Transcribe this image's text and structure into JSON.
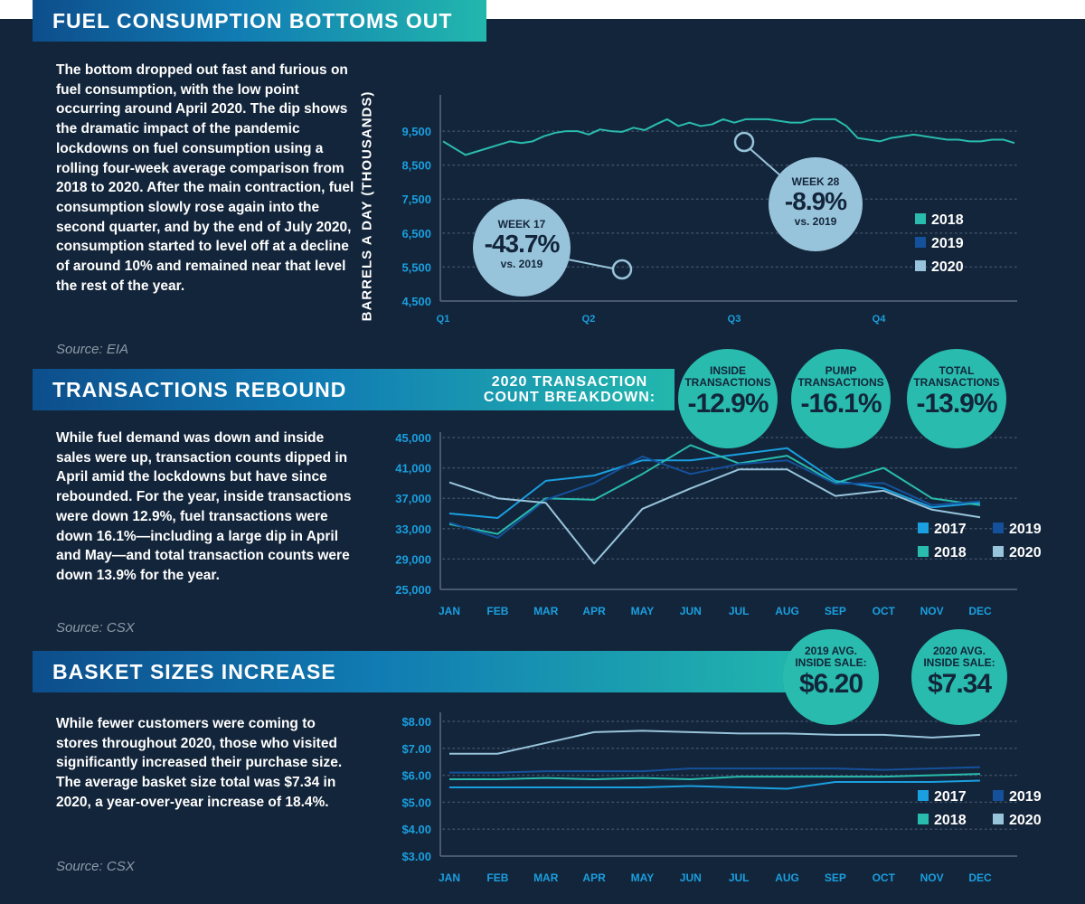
{
  "sections": [
    {
      "title": "FUEL CONSUMPTION BOTTOMS OUT",
      "body": "The bottom dropped out fast and furious on fuel consumption, with the low point occurring around April 2020. The dip shows the dramatic impact of the pandemic lockdowns on fuel consumption using a rolling four-week average comparison from 2018 to 2020. After the main contraction, fuel consumption slowly rose again into the second quarter, and by the end of July 2020, consumption started to level off at a decline of around 10% and remained near that level the rest of the year.",
      "source": "Source: EIA"
    },
    {
      "title": "TRANSACTIONS REBOUND",
      "body": "While fuel demand was down and inside sales were up, transaction counts dipped in April amid the lockdowns but have since rebounded. For the year, inside transactions were down 12.9%, fuel transactions were down 16.1%—including a large dip in April and May—and total transaction counts were down 13.9% for the year.",
      "source": "Source: CSX"
    },
    {
      "title": "BASKET SIZES INCREASE",
      "body": "While fewer customers were coming to stores throughout 2020, those who visited significantly increased their purchase size. The average basket size total was $7.34 in 2020, a year-over-year increase of 18.4%.",
      "source": "Source: CSX"
    }
  ],
  "callouts": {
    "week17": {
      "week": "WEEK 17",
      "value": "-43.7%",
      "vs": "vs. 2019"
    },
    "week28": {
      "week": "WEEK 28",
      "value": "-8.9%",
      "vs": "vs. 2019"
    }
  },
  "breakdown_label": "2020 TRANSACTION COUNT BREAKDOWN:",
  "breakdown": [
    {
      "label1": "INSIDE",
      "label2": "TRANSACTIONS",
      "value": "-12.9%"
    },
    {
      "label1": "PUMP",
      "label2": "TRANSACTIONS",
      "value": "-16.1%"
    },
    {
      "label1": "TOTAL",
      "label2": "TRANSACTIONS",
      "value": "-13.9%"
    }
  ],
  "avg_sales": [
    {
      "label1": "2019 AVG.",
      "label2": "INSIDE SALE:",
      "value": "$6.20"
    },
    {
      "label1": "2020 AVG.",
      "label2": "INSIDE SALE:",
      "value": "$7.34"
    }
  ],
  "colors": {
    "background": "#13253a",
    "series_2017": "#1a9fe0",
    "series_2018": "#29bcae",
    "series_2019": "#15519b",
    "series_2020": "#98c4db",
    "axis_text": "#1a9fe0"
  },
  "chart_data": [
    {
      "type": "line",
      "title": "",
      "ylabel": "BARRELS A DAY (THOUSANDS)",
      "xlabel": "",
      "x_ticks": [
        "Q1",
        "Q2",
        "Q3",
        "Q4"
      ],
      "y_ticks": [
        "4,500",
        "5,500",
        "6,500",
        "7,500",
        "8,500",
        "9,500"
      ],
      "ylim": [
        4500,
        10300
      ],
      "grid": "horizontal dotted",
      "legend": "right",
      "series": [
        {
          "name": "2018",
          "color_key": "series_2018",
          "x": [
            1,
            2,
            3,
            4,
            5,
            6,
            7,
            8,
            9,
            10,
            11,
            12,
            13,
            14,
            15,
            16,
            17,
            18,
            19,
            20,
            21,
            22,
            23,
            24,
            25,
            26,
            27,
            28,
            29,
            30,
            31,
            32,
            33,
            34,
            35,
            36,
            37,
            38,
            39,
            40,
            41,
            42,
            43,
            44,
            45,
            46,
            47,
            48,
            49,
            50,
            51,
            52
          ],
          "values": [
            9200,
            9000,
            8800,
            8900,
            9000,
            9100,
            9200,
            9150,
            9200,
            9350,
            9450,
            9500,
            9500,
            9400,
            9550,
            9500,
            9480,
            9600,
            9530,
            9700,
            9850,
            9650,
            9750,
            9650,
            9700,
            9850,
            9750,
            9850,
            9850,
            9850,
            9800,
            9750,
            9750,
            9850,
            9850,
            9850,
            9650,
            9300,
            9250,
            9200,
            9300,
            9350,
            9400,
            9350,
            9300,
            9250,
            9250,
            9200,
            9200,
            9250,
            9250,
            9150
          ]
        },
        {
          "name": "2019",
          "color_key": "series_2019",
          "x": [],
          "values": []
        },
        {
          "name": "2020",
          "color_key": "series_2020",
          "x": [],
          "values": []
        }
      ]
    },
    {
      "type": "line",
      "title": "",
      "xlabel": "",
      "ylabel": "",
      "categories": [
        "JAN",
        "FEB",
        "MAR",
        "APR",
        "MAY",
        "JUN",
        "JUL",
        "AUG",
        "SEP",
        "OCT",
        "NOV",
        "DEC"
      ],
      "y_ticks": [
        "25,000",
        "29,000",
        "33,000",
        "37,000",
        "41,000",
        "45,000"
      ],
      "ylim": [
        25000,
        45000
      ],
      "grid": "horizontal dotted",
      "legend": "bottom-right",
      "series": [
        {
          "name": "2017",
          "color_key": "series_2017",
          "values": [
            35000,
            34400,
            39300,
            40000,
            42000,
            42000,
            42800,
            43600,
            39300,
            38300,
            35800,
            36400
          ]
        },
        {
          "name": "2018",
          "color_key": "series_2018",
          "values": [
            33600,
            32300,
            37000,
            36800,
            40200,
            44000,
            41600,
            42600,
            39000,
            41000,
            37000,
            36100
          ]
        },
        {
          "name": "2019",
          "color_key": "series_2019",
          "values": [
            33800,
            31800,
            36800,
            39000,
            42500,
            40200,
            41500,
            42000,
            38900,
            39000,
            36100,
            36600
          ]
        },
        {
          "name": "2020",
          "color_key": "series_2020",
          "values": [
            39100,
            37000,
            36400,
            28400,
            35600,
            38300,
            40800,
            40800,
            37300,
            38000,
            35500,
            34500
          ]
        }
      ]
    },
    {
      "type": "line",
      "title": "",
      "xlabel": "",
      "ylabel": "",
      "categories": [
        "JAN",
        "FEB",
        "MAR",
        "APR",
        "MAY",
        "JUN",
        "JUL",
        "AUG",
        "SEP",
        "OCT",
        "NOV",
        "DEC"
      ],
      "y_ticks": [
        "$3.00",
        "$4.00",
        "$5.00",
        "$6.00",
        "$7.00",
        "$8.00"
      ],
      "ylim": [
        3,
        8.1
      ],
      "grid": "horizontal dotted",
      "legend": "bottom-right",
      "series": [
        {
          "name": "2017",
          "color_key": "series_2017",
          "values": [
            5.55,
            5.55,
            5.55,
            5.55,
            5.55,
            5.6,
            5.55,
            5.5,
            5.75,
            5.75,
            5.75,
            5.8
          ]
        },
        {
          "name": "2018",
          "color_key": "series_2018",
          "values": [
            5.85,
            5.85,
            5.9,
            5.85,
            5.9,
            5.85,
            5.95,
            5.95,
            5.95,
            5.95,
            6.0,
            6.05
          ]
        },
        {
          "name": "2019",
          "color_key": "series_2019",
          "values": [
            6.1,
            6.1,
            6.15,
            6.15,
            6.15,
            6.25,
            6.25,
            6.25,
            6.25,
            6.2,
            6.25,
            6.3
          ]
        },
        {
          "name": "2020",
          "color_key": "series_2020",
          "values": [
            6.8,
            6.8,
            7.2,
            7.6,
            7.65,
            7.6,
            7.55,
            7.55,
            7.5,
            7.5,
            7.4,
            7.5
          ]
        }
      ]
    }
  ]
}
